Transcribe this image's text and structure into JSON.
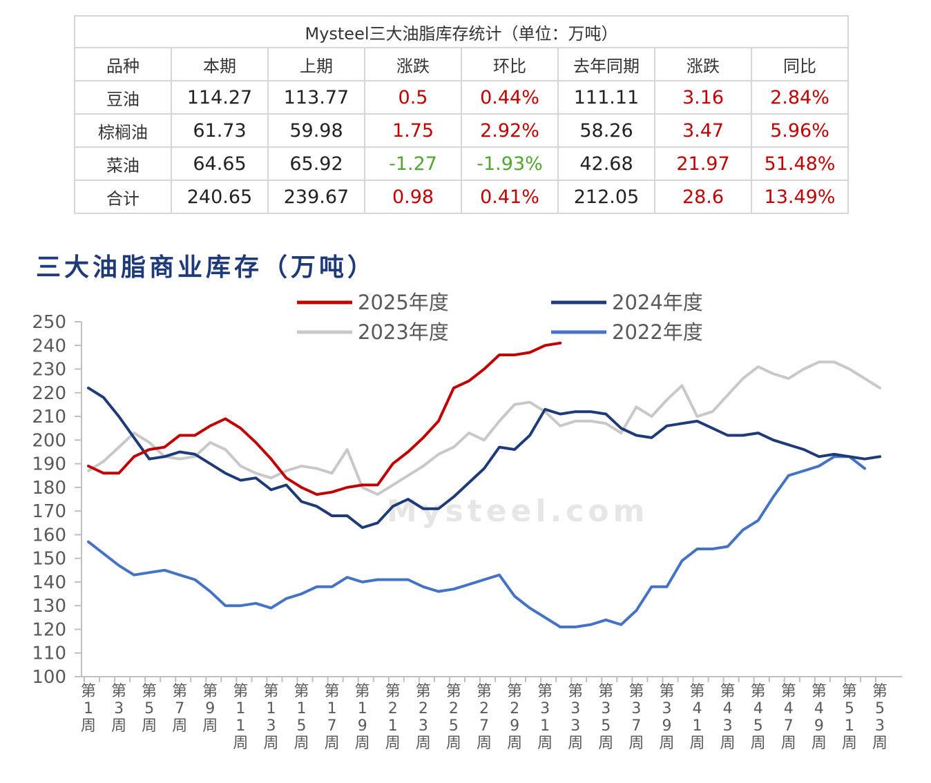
{
  "table": {
    "caption": "Mysteel三大油脂库存统计（单位：万吨）",
    "headers": [
      "品种",
      "本期",
      "上期",
      "涨跌",
      "环比",
      "去年同期",
      "涨跌",
      "同比"
    ],
    "rows": [
      {
        "name": "豆油",
        "current": "114.27",
        "previous": "113.77",
        "change": "0.5",
        "mom": "0.44%",
        "last_year": "111.11",
        "yoy_change": "3.16",
        "yoy": "2.84%"
      },
      {
        "name": "棕榈油",
        "current": "61.73",
        "previous": "59.98",
        "change": "1.75",
        "mom": "2.92%",
        "last_year": "58.26",
        "yoy_change": "3.47",
        "yoy": "5.96%"
      },
      {
        "name": "菜油",
        "current": "64.65",
        "previous": "65.92",
        "change": "-1.27",
        "mom": "-1.93%",
        "last_year": "42.68",
        "yoy_change": "21.97",
        "yoy": "51.48%"
      },
      {
        "name": "合计",
        "current": "240.65",
        "previous": "239.67",
        "change": "0.98",
        "mom": "0.41%",
        "last_year": "212.05",
        "yoy_change": "28.6",
        "yoy": "13.49%"
      }
    ],
    "colors": {
      "positive": "#c00000",
      "negative": "#4ea72e"
    }
  },
  "chart_data": {
    "type": "line",
    "title": "三大油脂商业库存（万吨）",
    "xlabel": "",
    "ylabel": "",
    "ylim": [
      100,
      250
    ],
    "ystep": 10,
    "x_tick_labels": [
      "第1周",
      "第3周",
      "第5周",
      "第7周",
      "第9周",
      "第11周",
      "第13周",
      "第15周",
      "第17周",
      "第19周",
      "第21周",
      "第23周",
      "第25周",
      "第27周",
      "第29周",
      "第31周",
      "第33周",
      "第35周",
      "第37周",
      "第39周",
      "第41周",
      "第43周",
      "第45周",
      "第47周",
      "第49周",
      "第51周",
      "第53周"
    ],
    "grid": false,
    "legend_position": "top",
    "watermark": "Mysteel.com",
    "series": [
      {
        "name": "2025年度",
        "color": "#c00000",
        "values": [
          189,
          186,
          186,
          193,
          196,
          197,
          202,
          202,
          206,
          209,
          205,
          199,
          192,
          184,
          180,
          177,
          178,
          180,
          181,
          181,
          190,
          195,
          201,
          208,
          222,
          225,
          230,
          236,
          236,
          237,
          240,
          241
        ]
      },
      {
        "name": "2024年度",
        "color": "#1f3a78",
        "values": [
          222,
          218,
          210,
          201,
          192,
          193,
          195,
          194,
          190,
          186,
          183,
          184,
          179,
          181,
          174,
          172,
          168,
          168,
          163,
          165,
          172,
          175,
          171,
          171,
          176,
          182,
          188,
          197,
          196,
          202,
          213,
          211,
          212,
          212,
          211,
          205,
          202,
          201,
          206,
          207,
          208,
          205,
          202,
          202,
          203,
          200,
          198,
          196,
          193,
          194,
          193,
          192,
          193
        ]
      },
      {
        "name": "2023年度",
        "color": "#c8c8c8",
        "values": [
          187,
          191,
          197,
          203,
          199,
          193,
          192,
          193,
          199,
          196,
          189,
          186,
          184,
          187,
          189,
          188,
          186,
          196,
          180,
          177,
          181,
          185,
          189,
          194,
          197,
          203,
          200,
          208,
          215,
          216,
          212,
          206,
          208,
          208,
          207,
          203,
          214,
          210,
          217,
          223,
          210,
          212,
          219,
          226,
          231,
          228,
          226,
          230,
          233,
          233,
          230,
          226,
          222
        ]
      },
      {
        "name": "2022年度",
        "color": "#4472c4",
        "values": [
          157,
          152,
          147,
          143,
          144,
          145,
          143,
          141,
          136,
          130,
          130,
          131,
          129,
          133,
          135,
          138,
          138,
          142,
          140,
          141,
          141,
          141,
          138,
          136,
          137,
          139,
          141,
          143,
          134,
          129,
          125,
          121,
          121,
          122,
          124,
          122,
          128,
          138,
          138,
          149,
          154,
          154,
          155,
          162,
          166,
          176,
          185,
          187,
          189,
          193,
          193,
          188
        ]
      }
    ]
  }
}
